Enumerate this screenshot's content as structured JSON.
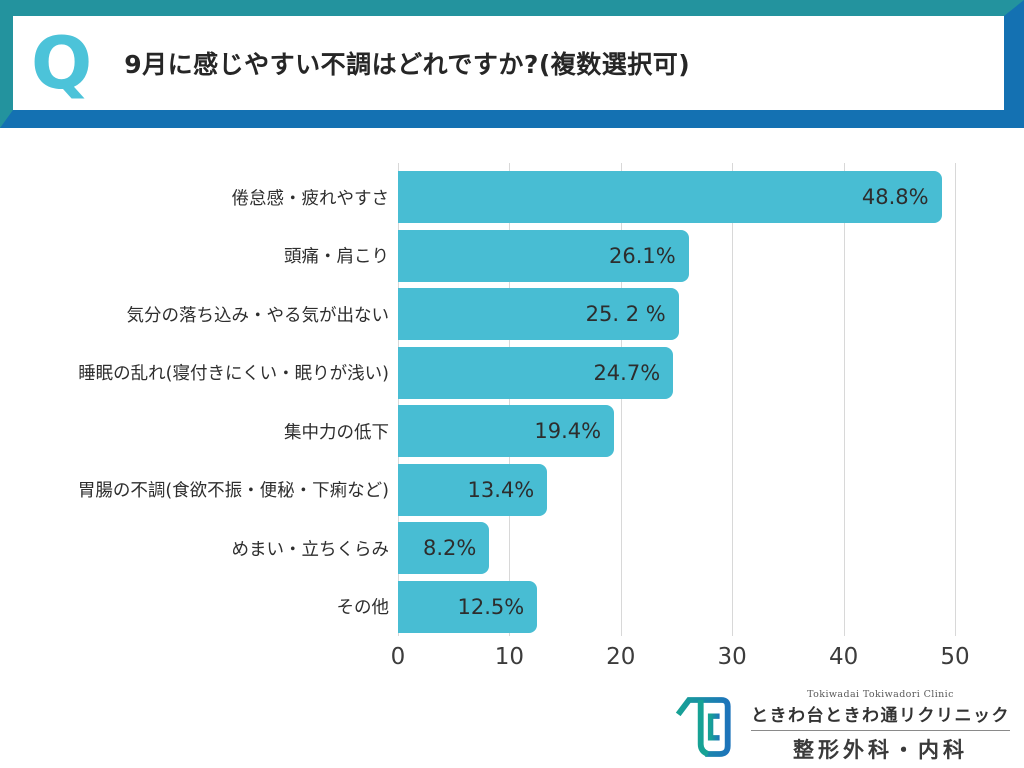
{
  "colors": {
    "frame_teal": "#23939e",
    "frame_blue": "#1471b2",
    "q_teal": "#4cc3d9",
    "bar": "#48bdd3"
  },
  "header": {
    "q_label": "Q",
    "question": "9月に感じやすい不調はどれですか?(複数選択可)"
  },
  "chart_data": {
    "type": "bar",
    "orientation": "horizontal",
    "title": "9月に感じやすい不調はどれですか?(複数選択可)",
    "categories": [
      "倦怠感・疲れやすさ",
      "頭痛・肩こり",
      "気分の落ち込み・やる気が出ない",
      "睡眠の乱れ(寝付きにくい・眠りが浅い)",
      "集中力の低下",
      "胃腸の不調(食欲不振・便秘・下痢など)",
      "めまい・立ちくらみ",
      "その他"
    ],
    "values": [
      48.8,
      26.1,
      25.2,
      24.7,
      19.4,
      13.4,
      8.2,
      12.5
    ],
    "value_labels": [
      "48.8%",
      "26.1%",
      "25. 2 %",
      "24.7%",
      "19.4%",
      "13.4%",
      "8.2%",
      "12.5%"
    ],
    "xlim": [
      0,
      50
    ],
    "x_ticks": [
      0,
      10,
      20,
      30,
      40,
      50
    ],
    "xlabel": "",
    "ylabel": "",
    "grid": true,
    "legend": false
  },
  "footer_logo": {
    "clinic_name_en": "Tokiwadai Tokiwadori Clinic",
    "clinic_name_ja": "ときわ台ときわ通リクリニック",
    "departments": "整形外科・内科"
  }
}
